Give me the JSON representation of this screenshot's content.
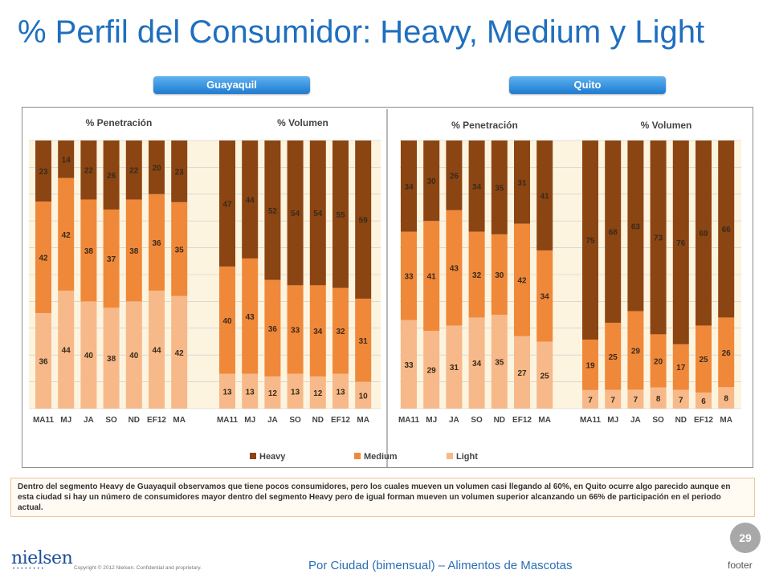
{
  "title": "% Perfil del Consumidor: Heavy, Medium y Light",
  "city_buttons": [
    "Guayaquil",
    "Quito"
  ],
  "colors": {
    "heavy": "#8b4513",
    "medium": "#f0883a",
    "light": "#f7b989",
    "plot_bg": "#fdf4df",
    "divider": "#a0a0a0"
  },
  "note": "Dentro del segmento Heavy de Guayaquil observamos que tiene pocos consumidores, pero los cuales mueven un volumen casi llegando al 60%, en Quito ocurre algo parecido aunque en esta ciudad si hay un número de consumidores mayor dentro del segmento Heavy  pero de igual forman mueven un volumen superior alcanzando un 66% de participación en el periodo actual.",
  "footer": {
    "page_number": "29",
    "logo": "nielsen",
    "copyright": "Copyright © 2012 Nielsen. Confidential and proprietary.",
    "center": "Por Ciudad (bimensual) – Alimentos de Mascotas",
    "right": "footer"
  },
  "chart_data": {
    "type": "bar",
    "stacked": true,
    "categories": [
      "MA11",
      "MJ",
      "JA",
      "SO",
      "ND",
      "EF12",
      "MA"
    ],
    "ylim": [
      0,
      100
    ],
    "grid": true,
    "legend": {
      "entries": [
        "Heavy",
        "Medium",
        "Light"
      ],
      "position": "bottom"
    },
    "groups": [
      {
        "city": "Guayaquil",
        "panel": "% Penetración",
        "series": [
          {
            "name": "Light",
            "values": [
              36,
              44,
              40,
              38,
              40,
              44,
              42
            ]
          },
          {
            "name": "Medium",
            "values": [
              42,
              42,
              38,
              37,
              38,
              36,
              35
            ]
          },
          {
            "name": "Heavy",
            "values": [
              23,
              14,
              22,
              26,
              22,
              20,
              23
            ]
          }
        ]
      },
      {
        "city": "Guayaquil",
        "panel": "% Volumen",
        "series": [
          {
            "name": "Light",
            "values": [
              13,
              13,
              12,
              13,
              12,
              13,
              10
            ]
          },
          {
            "name": "Medium",
            "values": [
              40,
              43,
              36,
              33,
              34,
              32,
              31
            ]
          },
          {
            "name": "Heavy",
            "values": [
              47,
              44,
              52,
              54,
              54,
              55,
              59
            ]
          }
        ]
      },
      {
        "city": "Quito",
        "panel": "% Penetración",
        "series": [
          {
            "name": "Light",
            "values": [
              33,
              29,
              31,
              34,
              35,
              27,
              25
            ]
          },
          {
            "name": "Medium",
            "values": [
              33,
              41,
              43,
              32,
              30,
              42,
              34
            ]
          },
          {
            "name": "Heavy",
            "values": [
              34,
              30,
              26,
              34,
              35,
              31,
              41
            ]
          }
        ]
      },
      {
        "city": "Quito",
        "panel": "% Volumen",
        "series": [
          {
            "name": "Light",
            "values": [
              7,
              7,
              7,
              8,
              7,
              6,
              8
            ]
          },
          {
            "name": "Medium",
            "values": [
              19,
              25,
              29,
              20,
              17,
              25,
              26
            ]
          },
          {
            "name": "Heavy",
            "values": [
              75,
              68,
              63,
              73,
              76,
              69,
              66
            ]
          }
        ]
      }
    ]
  }
}
